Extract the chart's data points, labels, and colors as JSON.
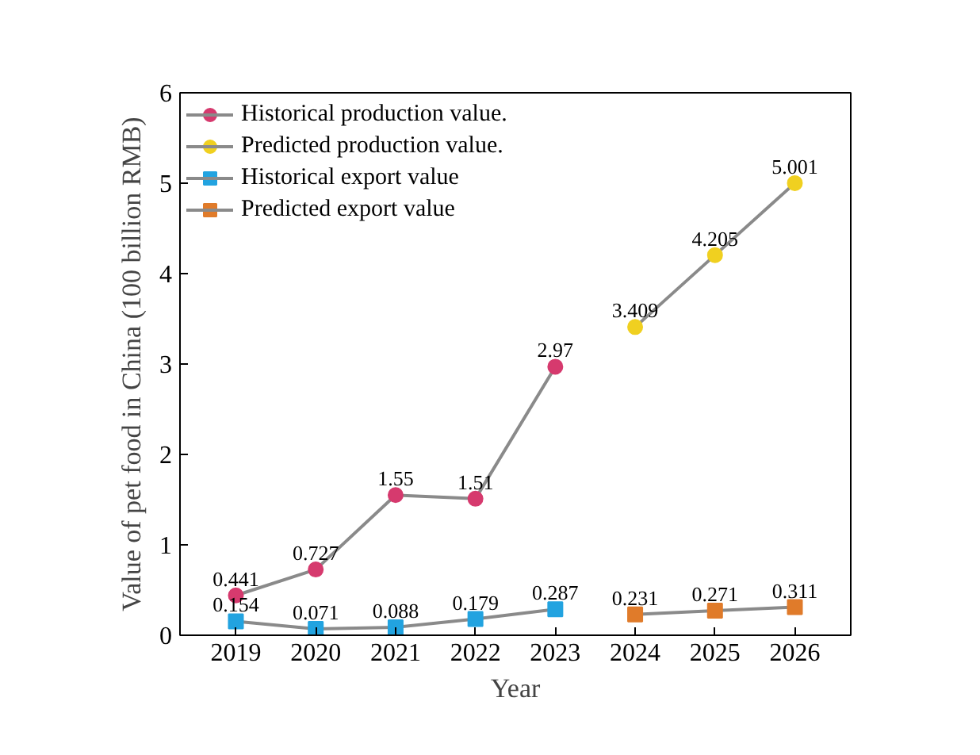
{
  "chart_data": {
    "type": "line",
    "xlabel": "Year",
    "ylabel": "Value of pet food in China (100 billion RMB)",
    "categories": [
      "2019",
      "2020",
      "2021",
      "2022",
      "2023",
      "2024",
      "2025",
      "2026"
    ],
    "ylim": [
      0,
      6
    ],
    "yticks": [
      0,
      1,
      2,
      3,
      4,
      5,
      6
    ],
    "grid": false,
    "legend": "top left",
    "data_labels": true,
    "line_style": "solid",
    "series": [
      {
        "name": "Historical production value.",
        "color": "#d63a6e",
        "marker": "circle",
        "values": [
          0.441,
          0.727,
          1.55,
          1.51,
          2.97,
          null,
          null,
          null
        ]
      },
      {
        "name": "Predicted production value.",
        "color": "#f0d020",
        "marker": "circle",
        "values": [
          null,
          null,
          null,
          null,
          null,
          3.409,
          4.205,
          5.001
        ]
      },
      {
        "name": "Historical export value",
        "color": "#22a3e0",
        "marker": "square",
        "values": [
          0.154,
          0.071,
          0.088,
          0.179,
          0.287,
          null,
          null,
          null
        ]
      },
      {
        "name": "Predicted export value",
        "color": "#e07b2a",
        "marker": "square",
        "values": [
          null,
          null,
          null,
          null,
          null,
          0.231,
          0.271,
          0.311
        ]
      }
    ]
  }
}
